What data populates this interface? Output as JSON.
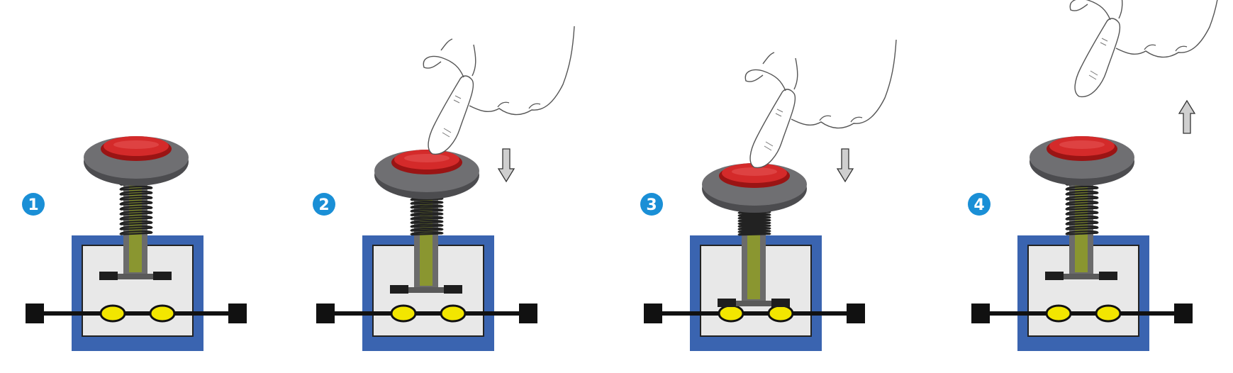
{
  "steps": [
    {
      "number": "1",
      "button_pressed": 0.0,
      "contact_closed": false,
      "finger": "none",
      "arrow": "none"
    },
    {
      "number": "2",
      "button_pressed": 0.5,
      "contact_closed": false,
      "finger": "pressing",
      "arrow": "down"
    },
    {
      "number": "3",
      "button_pressed": 1.0,
      "contact_closed": true,
      "finger": "pressing",
      "arrow": "down"
    },
    {
      "number": "4",
      "button_pressed": 0.0,
      "contact_closed": false,
      "finger": "releasing",
      "arrow": "up"
    }
  ],
  "colors": {
    "badge": "#1a8fd6",
    "housing_border": "#3a64b0",
    "housing_fill": "#e8e8e8",
    "cap_red": "#d42a2a",
    "cap_ring": "#6f6f72",
    "plunger": "#8a9630",
    "spring": "#222222",
    "contact_pad": "#f2e600",
    "terminal": "#111111",
    "arrow_fill": "#cfcfcf"
  },
  "icons": [
    "finger-hand-icon",
    "arrow-down-icon",
    "arrow-up-icon"
  ]
}
